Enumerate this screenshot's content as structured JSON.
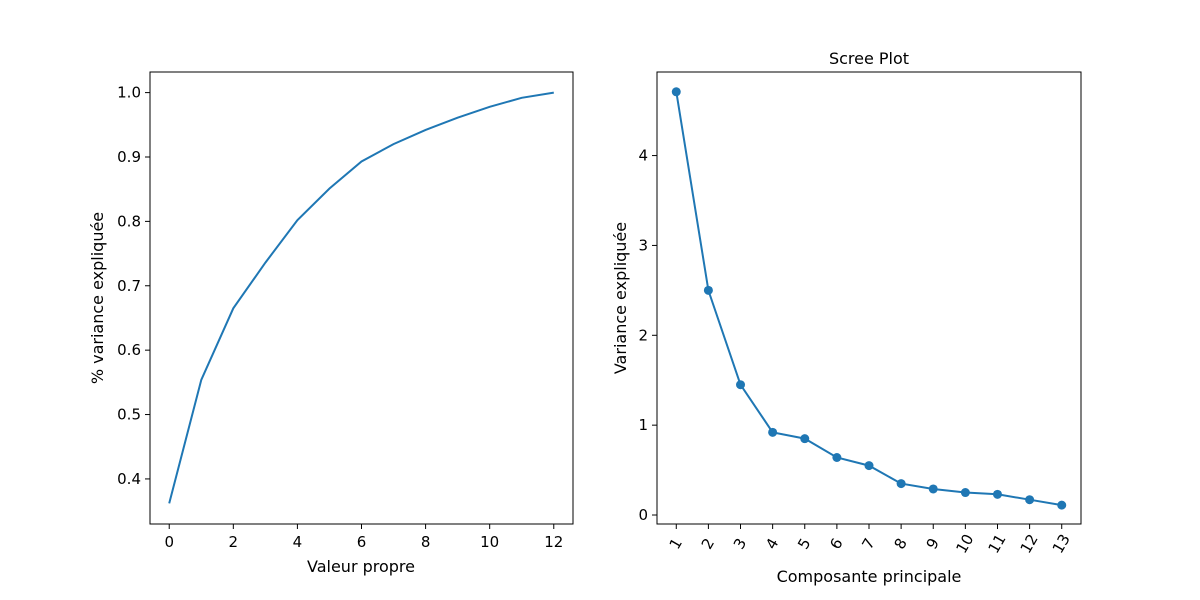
{
  "chart_data": [
    {
      "type": "line",
      "title": "",
      "xlabel": "Valeur propre",
      "ylabel": "% variance expliquée",
      "xlim": [
        -0.6,
        12.6
      ],
      "ylim": [
        0.33,
        1.032
      ],
      "x_ticks": [
        0,
        2,
        4,
        6,
        8,
        10,
        12
      ],
      "y_ticks": [
        0.4,
        0.5,
        0.6,
        0.7,
        0.8,
        0.9,
        1.0
      ],
      "y_tick_labels": [
        "0.4",
        "0.5",
        "0.6",
        "0.7",
        "0.8",
        "0.9",
        "1.0"
      ],
      "grid": false,
      "color": "#1f77b4",
      "series": [
        {
          "x": [
            0,
            1,
            2,
            3,
            4,
            5,
            6,
            7,
            8,
            9,
            10,
            11,
            12
          ],
          "values": [
            0.362,
            0.554,
            0.665,
            0.736,
            0.802,
            0.851,
            0.893,
            0.92,
            0.942,
            0.961,
            0.978,
            0.992,
            1.0
          ]
        }
      ]
    },
    {
      "type": "line",
      "title": "Scree Plot",
      "xlabel": "Composante principale",
      "ylabel": "Variance expliquée",
      "categories": [
        "1",
        "2",
        "3",
        "4",
        "5",
        "6",
        "7",
        "8",
        "9",
        "10",
        "11",
        "12",
        "13"
      ],
      "xlim": [
        0.4,
        13.6
      ],
      "ylim": [
        -0.1,
        4.93
      ],
      "y_ticks": [
        0,
        1,
        2,
        3,
        4
      ],
      "y_tick_labels": [
        "0",
        "1",
        "2",
        "3",
        "4"
      ],
      "x_tick_rotation": 60,
      "markers": true,
      "grid": false,
      "color": "#1f77b4",
      "series": [
        {
          "values": [
            4.71,
            2.5,
            1.45,
            0.92,
            0.85,
            0.64,
            0.55,
            0.35,
            0.29,
            0.25,
            0.23,
            0.17,
            0.11
          ]
        }
      ]
    }
  ]
}
